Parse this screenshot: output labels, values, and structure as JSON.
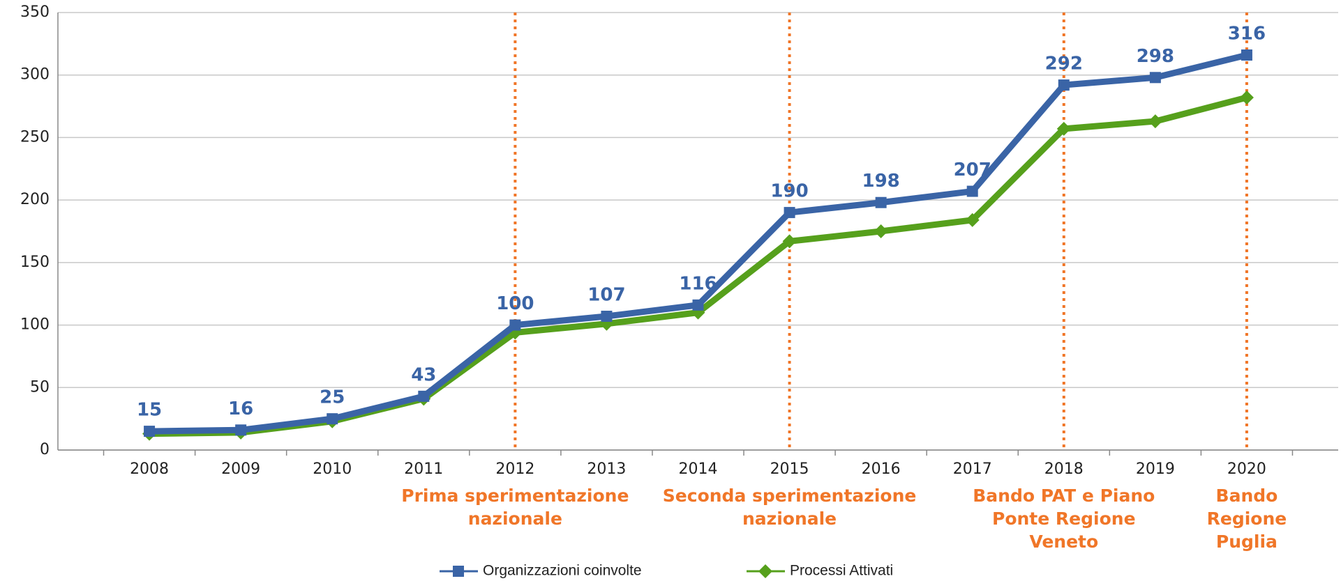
{
  "chart_data": {
    "type": "line",
    "categories": [
      "2008",
      "2009",
      "2010",
      "2011",
      "2012",
      "2013",
      "2014",
      "2015",
      "2016",
      "2017",
      "2018",
      "2019",
      "2020"
    ],
    "series": [
      {
        "name": "Organizzazioni coinvolte",
        "color": "#3a64a6",
        "marker": "square",
        "values": [
          15,
          16,
          25,
          43,
          100,
          107,
          116,
          190,
          198,
          207,
          292,
          298,
          316
        ]
      },
      {
        "name": "Processi Attivati",
        "color": "#56a01c",
        "marker": "diamond",
        "values": [
          13,
          14,
          23,
          41,
          94,
          101,
          110,
          167,
          175,
          184,
          257,
          263,
          282
        ]
      }
    ],
    "ylim": [
      0,
      350
    ],
    "yticks": [
      0,
      50,
      100,
      150,
      200,
      250,
      300,
      350
    ],
    "grid": true,
    "annotations": [
      {
        "x": "2012",
        "lines": [
          "Prima sperimentazione",
          "nazionale"
        ]
      },
      {
        "x": "2015",
        "lines": [
          "Seconda sperimentazione",
          "nazionale"
        ]
      },
      {
        "x": "2018",
        "lines": [
          "Bando PAT e Piano",
          "Ponte Regione",
          "Veneto"
        ]
      },
      {
        "x": "2020",
        "lines": [
          "Bando",
          "Regione",
          "Puglia"
        ]
      }
    ],
    "legend": "bottom"
  }
}
